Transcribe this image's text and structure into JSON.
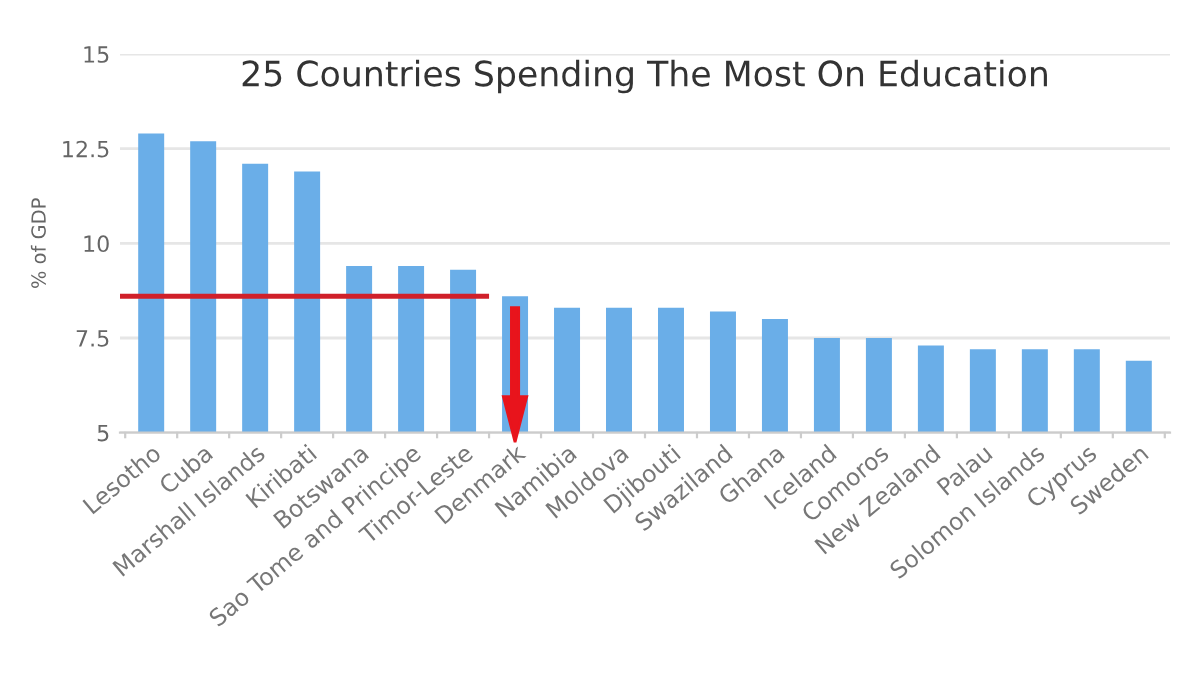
{
  "chart_data": {
    "type": "bar",
    "title": "25 Countries Spending The Most On Education",
    "ylabel": "% of GDP",
    "categories": [
      "Lesotho",
      "Cuba",
      "Marshall Islands",
      "Kiribati",
      "Botswana",
      "Sao Tome and Principe",
      "Timor-Leste",
      "Denmark",
      "Namibia",
      "Moldova",
      "Djibouti",
      "Swaziland",
      "Ghana",
      "Iceland",
      "Comoros",
      "New Zealand",
      "Palau",
      "Solomon Islands",
      "Cyprus",
      "Sweden"
    ],
    "values": [
      12.9,
      12.7,
      12.1,
      11.9,
      9.4,
      9.4,
      9.3,
      8.6,
      8.3,
      8.3,
      8.3,
      8.2,
      8.0,
      7.5,
      7.5,
      7.3,
      7.2,
      7.2,
      7.2,
      6.9
    ],
    "color": "#6aaee8",
    "ylim": [
      5,
      15
    ],
    "yticks": [
      5,
      7.5,
      10,
      12.5,
      15
    ],
    "grid": "y",
    "legend": false,
    "ref_lines": [
      {
        "axis": "y",
        "value": 8.6,
        "color": "#d0202a"
      }
    ]
  }
}
